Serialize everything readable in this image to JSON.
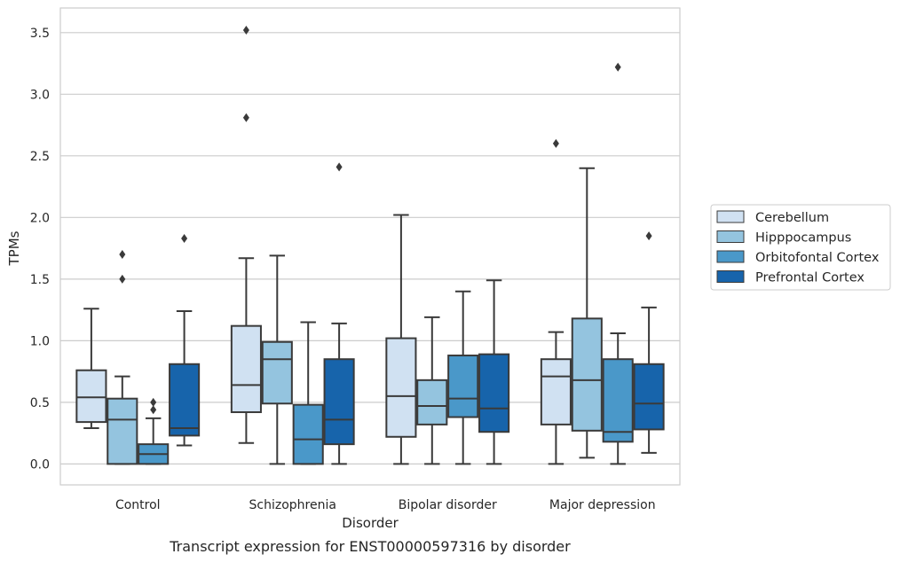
{
  "chart_data": {
    "type": "box",
    "xlabel": "Disorder",
    "ylabel": "TPMs",
    "caption": "Transcript expression for ENST00000597316 by disorder",
    "ylim": [
      -0.17,
      3.7
    ],
    "yticks": [
      "0.0",
      "0.5",
      "1.0",
      "1.5",
      "2.0",
      "2.5",
      "3.0",
      "3.5"
    ],
    "ytick_values": [
      0.0,
      0.5,
      1.0,
      1.5,
      2.0,
      2.5,
      3.0,
      3.5
    ],
    "grid": true,
    "legend_position": "right",
    "categories": [
      "Control",
      "Schizophrenia",
      "Bipolar disorder",
      "Major depression"
    ],
    "series": [
      {
        "name": "Cerebellum",
        "color": "#d0e1f2",
        "boxes": [
          {
            "whisker_low": 0.29,
            "q1": 0.34,
            "median": 0.54,
            "q3": 0.76,
            "whisker_high": 1.26,
            "outliers": []
          },
          {
            "whisker_low": 0.17,
            "q1": 0.42,
            "median": 0.64,
            "q3": 1.12,
            "whisker_high": 1.67,
            "outliers": [
              2.81,
              3.52
            ]
          },
          {
            "whisker_low": 0.0,
            "q1": 0.22,
            "median": 0.55,
            "q3": 1.02,
            "whisker_high": 2.02,
            "outliers": []
          },
          {
            "whisker_low": 0.0,
            "q1": 0.32,
            "median": 0.71,
            "q3": 0.85,
            "whisker_high": 1.07,
            "outliers": [
              2.6
            ]
          }
        ]
      },
      {
        "name": "Hipppocampus",
        "color": "#94c4df",
        "boxes": [
          {
            "whisker_low": 0.0,
            "q1": 0.0,
            "median": 0.36,
            "q3": 0.53,
            "whisker_high": 0.71,
            "outliers": [
              1.5,
              1.7
            ]
          },
          {
            "whisker_low": 0.0,
            "q1": 0.49,
            "median": 0.85,
            "q3": 0.99,
            "whisker_high": 1.69,
            "outliers": []
          },
          {
            "whisker_low": 0.0,
            "q1": 0.32,
            "median": 0.47,
            "q3": 0.68,
            "whisker_high": 1.19,
            "outliers": []
          },
          {
            "whisker_low": 0.05,
            "q1": 0.27,
            "median": 0.68,
            "q3": 1.18,
            "whisker_high": 2.4,
            "outliers": []
          }
        ]
      },
      {
        "name": "Orbitofontal Cortex",
        "color": "#4a98c9",
        "boxes": [
          {
            "whisker_low": 0.0,
            "q1": 0.0,
            "median": 0.08,
            "q3": 0.16,
            "whisker_high": 0.37,
            "outliers": [
              0.44,
              0.5
            ]
          },
          {
            "whisker_low": 0.0,
            "q1": 0.0,
            "median": 0.2,
            "q3": 0.48,
            "whisker_high": 1.15,
            "outliers": []
          },
          {
            "whisker_low": 0.0,
            "q1": 0.38,
            "median": 0.53,
            "q3": 0.88,
            "whisker_high": 1.4,
            "outliers": []
          },
          {
            "whisker_low": 0.0,
            "q1": 0.18,
            "median": 0.26,
            "q3": 0.85,
            "whisker_high": 1.06,
            "outliers": [
              3.22
            ]
          }
        ]
      },
      {
        "name": "Prefrontal Cortex",
        "color": "#1764ab",
        "boxes": [
          {
            "whisker_low": 0.15,
            "q1": 0.23,
            "median": 0.29,
            "q3": 0.81,
            "whisker_high": 1.24,
            "outliers": [
              1.83
            ]
          },
          {
            "whisker_low": 0.0,
            "q1": 0.16,
            "median": 0.36,
            "q3": 0.85,
            "whisker_high": 1.14,
            "outliers": [
              2.41
            ]
          },
          {
            "whisker_low": 0.0,
            "q1": 0.26,
            "median": 0.45,
            "q3": 0.89,
            "whisker_high": 1.49,
            "outliers": []
          },
          {
            "whisker_low": 0.09,
            "q1": 0.28,
            "median": 0.49,
            "q3": 0.81,
            "whisker_high": 1.27,
            "outliers": [
              1.85
            ]
          }
        ]
      }
    ]
  }
}
